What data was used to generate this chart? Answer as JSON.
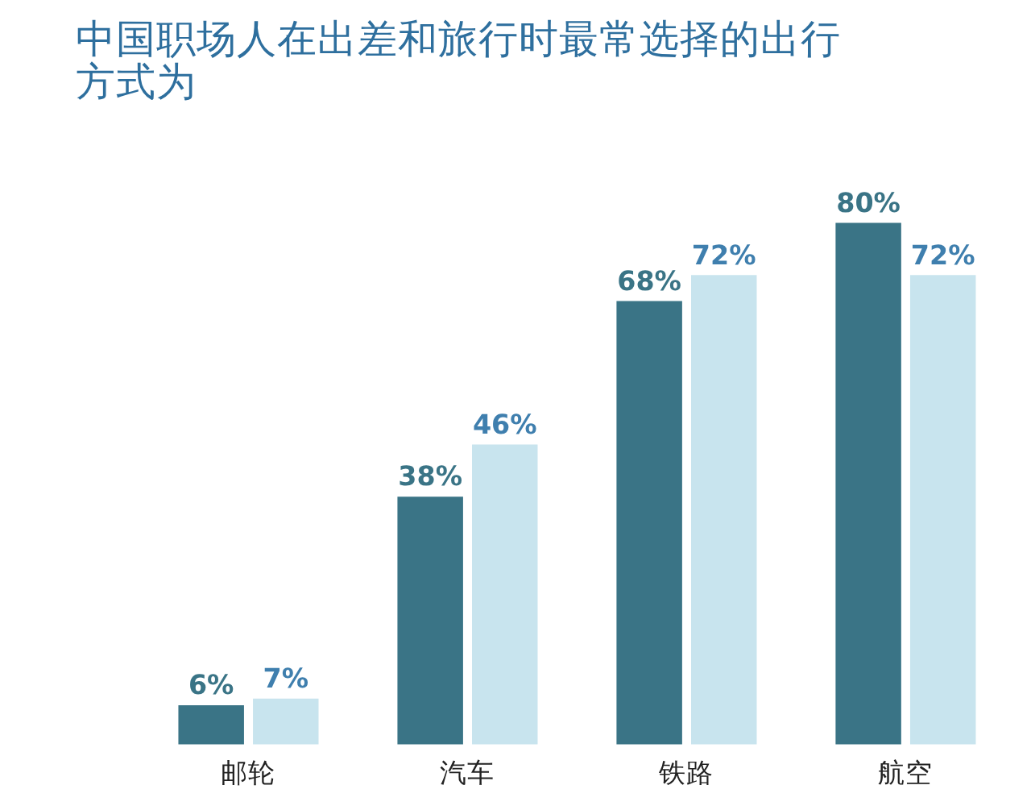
{
  "chart_data": {
    "type": "bar",
    "title": "中国职场人在出差和旅行时最常选择的出行方式为",
    "categories": [
      "邮轮",
      "汽车",
      "铁路",
      "航空"
    ],
    "orientation": "vertical",
    "series": [
      {
        "color": "#3a7486",
        "values": [
          6,
          38,
          68,
          80
        ],
        "value_labels": [
          "6%",
          "38%",
          "68%",
          "80%"
        ]
      },
      {
        "color": "#c8e4ee",
        "values": [
          7,
          46,
          72,
          72
        ],
        "value_labels": [
          "7%",
          "46%",
          "72%",
          "72%"
        ]
      }
    ]
  }
}
